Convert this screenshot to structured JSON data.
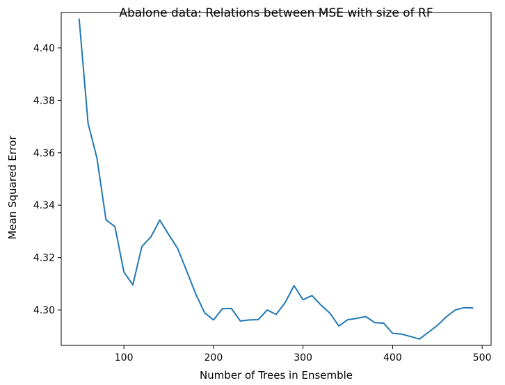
{
  "chart_data": {
    "type": "line",
    "title": "Abalone data: Relations between MSE with size of RF",
    "xlabel": "Number of Trees in Ensemble",
    "ylabel": "Mean Squared Error",
    "xlim": [
      30,
      510
    ],
    "ylim": [
      4.2865,
      4.4135
    ],
    "xticks": [
      100,
      200,
      300,
      400,
      500
    ],
    "yticks": [
      4.3,
      4.32,
      4.34,
      4.36,
      4.38,
      4.4
    ],
    "xtick_labels": [
      "100",
      "200",
      "300",
      "400",
      "500"
    ],
    "ytick_labels": [
      "4.30",
      "4.32",
      "4.34",
      "4.36",
      "4.38",
      "4.40"
    ],
    "grid": false,
    "series": [
      {
        "color": "#1f77b4",
        "x": [
          50,
          60,
          70,
          80,
          90,
          100,
          110,
          120,
          130,
          140,
          150,
          160,
          170,
          180,
          190,
          200,
          210,
          220,
          230,
          240,
          250,
          260,
          270,
          280,
          290,
          300,
          310,
          320,
          330,
          340,
          350,
          360,
          370,
          380,
          390,
          400,
          410,
          420,
          430,
          440,
          450,
          460,
          470,
          480,
          490
        ],
        "y": [
          4.4112,
          4.3712,
          4.3578,
          4.3344,
          4.3318,
          4.3145,
          4.3096,
          4.3242,
          4.3278,
          4.3343,
          4.3288,
          4.3235,
          4.315,
          4.3063,
          4.299,
          4.2962,
          4.3005,
          4.3006,
          4.2958,
          4.2962,
          4.2963,
          4.3,
          4.2983,
          4.3028,
          4.3093,
          4.3039,
          4.3055,
          4.3019,
          4.2988,
          4.2939,
          4.2963,
          4.2968,
          4.2975,
          4.2952,
          4.295,
          4.2911,
          4.2908,
          4.2899,
          4.2889,
          4.2915,
          4.2941,
          4.2974,
          4.3,
          4.3009,
          4.3008
        ]
      }
    ]
  }
}
